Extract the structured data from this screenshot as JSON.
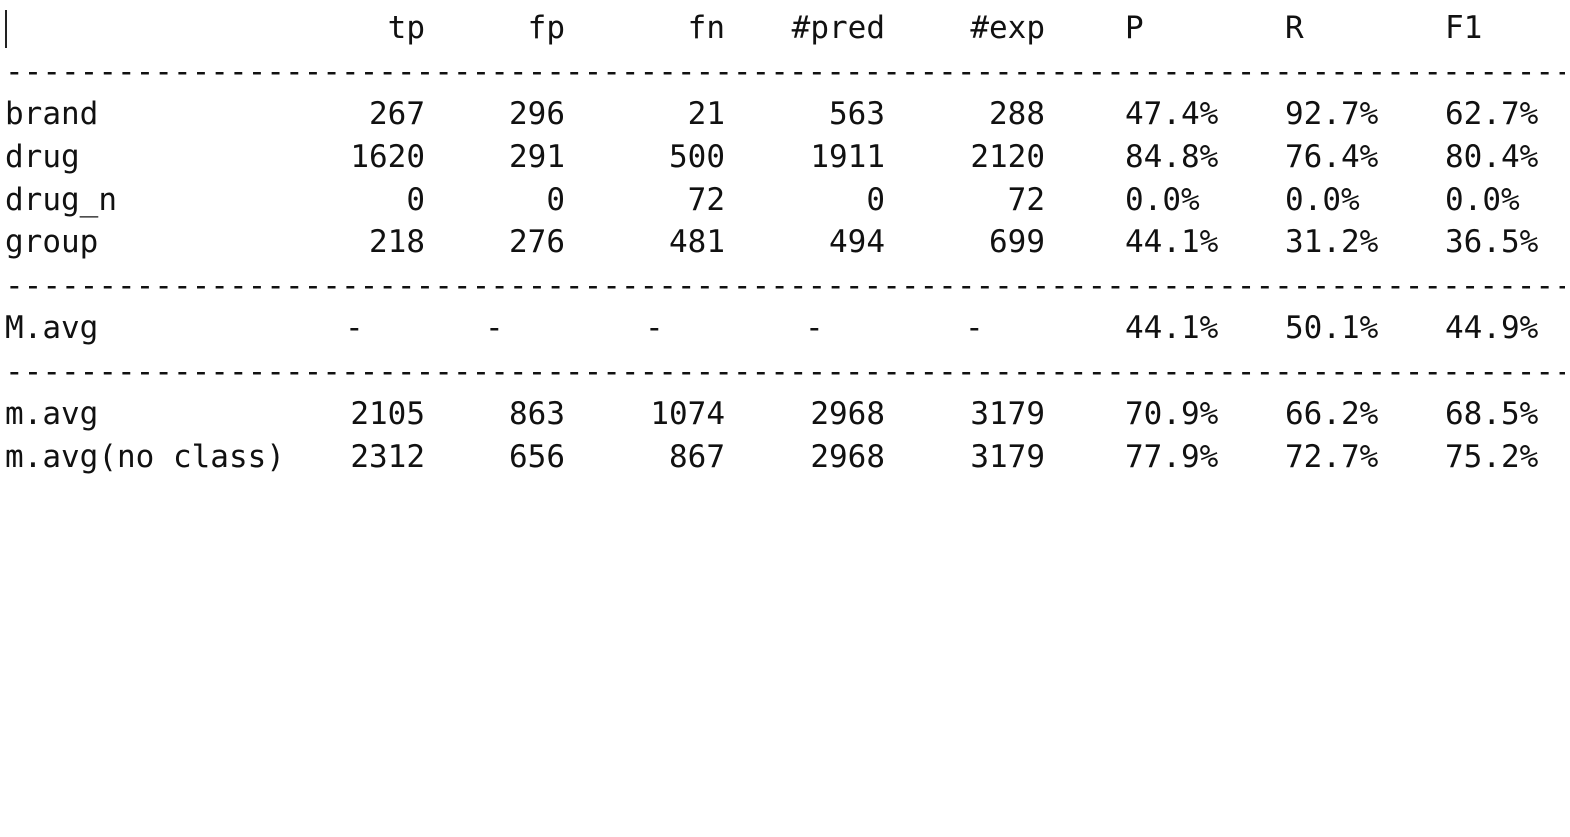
{
  "header": {
    "tp": "tp",
    "fp": "fp",
    "fn": "fn",
    "pred": "#pred",
    "exp": "#exp",
    "P": "P",
    "R": "R",
    "F1": "F1"
  },
  "separator": "----------------------------------------------------------------------------------------------",
  "class_rows": [
    {
      "label": "brand",
      "tp": "267",
      "fp": "296",
      "fn": "21",
      "pred": "563",
      "exp": "288",
      "P": "47.4%",
      "R": "92.7%",
      "F1": "62.7%"
    },
    {
      "label": "drug",
      "tp": "1620",
      "fp": "291",
      "fn": "500",
      "pred": "1911",
      "exp": "2120",
      "P": "84.8%",
      "R": "76.4%",
      "F1": "80.4%"
    },
    {
      "label": "drug_n",
      "tp": "0",
      "fp": "0",
      "fn": "72",
      "pred": "0",
      "exp": "72",
      "P": "0.0%",
      "R": "0.0%",
      "F1": "0.0%"
    },
    {
      "label": "group",
      "tp": "218",
      "fp": "276",
      "fn": "481",
      "pred": "494",
      "exp": "699",
      "P": "44.1%",
      "R": "31.2%",
      "F1": "36.5%"
    }
  ],
  "macro_row": {
    "label": "M.avg",
    "tp": "-",
    "fp": "-",
    "fn": "-",
    "pred": "-",
    "exp": "-",
    "P": "44.1%",
    "R": "50.1%",
    "F1": "44.9%"
  },
  "micro_rows": [
    {
      "label": "m.avg",
      "tp": "2105",
      "fp": "863",
      "fn": "1074",
      "pred": "2968",
      "exp": "3179",
      "P": "70.9%",
      "R": "66.2%",
      "F1": "68.5%"
    },
    {
      "label": "m.avg(no class)",
      "tp": "2312",
      "fp": "656",
      "fn": "867",
      "pred": "2968",
      "exp": "3179",
      "P": "77.9%",
      "R": "72.7%",
      "F1": "75.2%"
    }
  ]
}
